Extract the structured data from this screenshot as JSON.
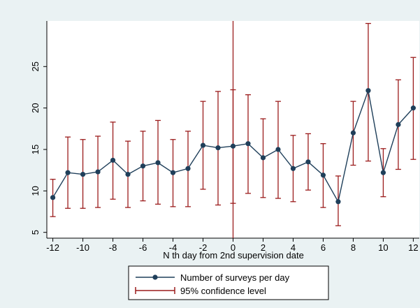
{
  "chart_data": {
    "type": "line",
    "title": "",
    "xlabel": "N th day from 2nd supervision date",
    "ylabel": "",
    "xlim": [
      -12.4,
      12.4
    ],
    "ylim": [
      4.3,
      30.5
    ],
    "x_ticks": [
      -12,
      -10,
      -8,
      -6,
      -4,
      -2,
      0,
      2,
      4,
      6,
      8,
      10,
      12
    ],
    "y_ticks": [
      5,
      10,
      15,
      20,
      25
    ],
    "grid": false,
    "legend_position": "bottom",
    "reference_line": {
      "x": 0,
      "ymin": 4.3,
      "ymax": 30.5,
      "color": "#9b1c1c"
    },
    "series": [
      {
        "name": "Number of surveys per day",
        "kind": "line-marker",
        "color": "#1f3f5a",
        "x": [
          -12,
          -11,
          -10,
          -9,
          -8,
          -7,
          -6,
          -5,
          -4,
          -3,
          -2,
          -1,
          0,
          1,
          2,
          3,
          4,
          5,
          6,
          7,
          8,
          9,
          10,
          11,
          12
        ],
        "y": [
          9.2,
          12.2,
          12.0,
          12.3,
          13.7,
          12.0,
          13.0,
          13.4,
          12.2,
          12.7,
          15.5,
          15.2,
          15.4,
          15.7,
          14.0,
          15.0,
          12.7,
          13.5,
          11.9,
          8.7,
          17.0,
          22.1,
          12.2,
          18.0,
          20.0
        ]
      },
      {
        "name": "95% confidence level",
        "kind": "error-bars",
        "color": "#9b1c1c",
        "x": [
          -12,
          -11,
          -10,
          -9,
          -8,
          -7,
          -6,
          -5,
          -4,
          -3,
          -2,
          -1,
          0,
          1,
          2,
          3,
          4,
          5,
          6,
          7,
          8,
          9,
          10,
          11,
          12
        ],
        "lower": [
          6.9,
          7.9,
          7.9,
          8.0,
          9.0,
          8.0,
          8.8,
          8.4,
          8.1,
          8.1,
          10.2,
          8.3,
          8.5,
          9.7,
          9.2,
          9.1,
          8.7,
          10.1,
          8.0,
          5.8,
          13.1,
          13.6,
          9.3,
          12.6,
          13.8
        ],
        "upper": [
          11.4,
          16.5,
          16.2,
          16.6,
          18.3,
          16.0,
          17.2,
          18.5,
          16.2,
          17.2,
          20.8,
          22.0,
          22.2,
          21.6,
          18.7,
          20.8,
          16.7,
          16.9,
          15.7,
          11.8,
          20.8,
          30.2,
          15.1,
          23.4,
          26.1
        ]
      }
    ]
  }
}
